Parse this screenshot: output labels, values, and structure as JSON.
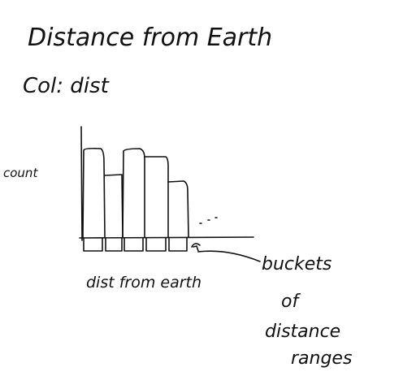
{
  "header": {
    "title": "Distance from Earth",
    "subtitle": "Col: dist"
  },
  "sketch": {
    "y_label": "count",
    "x_label": "dist from earth",
    "annotation": [
      "buckets",
      "of",
      "distance",
      "ranges"
    ]
  }
}
